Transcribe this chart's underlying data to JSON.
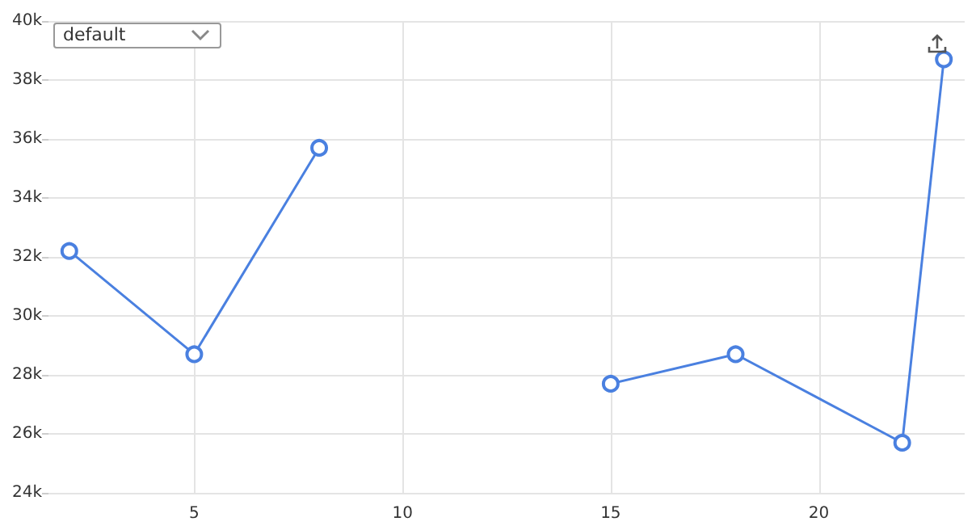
{
  "chart_data": {
    "type": "line",
    "x": [
      2,
      5,
      8,
      12,
      15,
      18,
      22,
      23
    ],
    "series": [
      {
        "color": "#4a80e0",
        "values": [
          32200,
          28700,
          35700,
          null,
          27700,
          28700,
          25700,
          38700
        ]
      }
    ],
    "xlim": [
      1.5,
      23.5
    ],
    "xticks": [
      5,
      10,
      15,
      20
    ],
    "ylim": [
      24000,
      40000
    ],
    "yticks": [
      {
        "value": 24000,
        "label": "24k"
      },
      {
        "value": 26000,
        "label": "26k"
      },
      {
        "value": 28000,
        "label": "28k"
      },
      {
        "value": 30000,
        "label": "30k"
      },
      {
        "value": 32000,
        "label": "32k"
      },
      {
        "value": 34000,
        "label": "34k"
      },
      {
        "value": 36000,
        "label": "36k"
      },
      {
        "value": 38000,
        "label": "38k"
      },
      {
        "value": 40000,
        "label": "40k"
      }
    ],
    "grid": true,
    "marker": "circle",
    "line_style": "solid",
    "annotations": [
      "default"
    ]
  }
}
